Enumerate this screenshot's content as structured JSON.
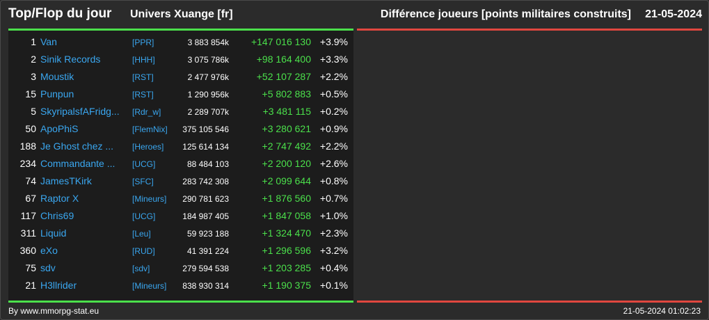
{
  "header": {
    "title": "Top/Flop du jour",
    "universe": "Univers Xuange [fr]",
    "metric": "Différence joueurs [points militaires construits]",
    "date": "21-05-2024"
  },
  "colors": {
    "top_accent": "#4be04b",
    "flop_accent": "#e0473f",
    "player_link": "#3aa7f0",
    "gain_text": "#4be04b"
  },
  "top": {
    "rows": [
      {
        "rank": "1",
        "name": "Van",
        "alliance": "[PPR]",
        "points": "3 883 854k",
        "diff": "+147 016 130",
        "pct": "+3.9%"
      },
      {
        "rank": "2",
        "name": "Sinik Records",
        "alliance": "[HHH]",
        "points": "3 075 786k",
        "diff": "+98 164 400",
        "pct": "+3.3%"
      },
      {
        "rank": "3",
        "name": "Moustik",
        "alliance": "[RST]",
        "points": "2 477 976k",
        "diff": "+52 107 287",
        "pct": "+2.2%"
      },
      {
        "rank": "15",
        "name": "Punpun",
        "alliance": "[RST]",
        "points": "1 290 956k",
        "diff": "+5 802 883",
        "pct": "+0.5%"
      },
      {
        "rank": "5",
        "name": "SkyripalsfAFridg...",
        "alliance": "[Rdr_w]",
        "points": "2 289 707k",
        "diff": "+3 481 115",
        "pct": "+0.2%"
      },
      {
        "rank": "50",
        "name": "ApoPhiS",
        "alliance": "[FlemNix]",
        "points": "375 105 546",
        "diff": "+3 280 621",
        "pct": "+0.9%"
      },
      {
        "rank": "188",
        "name": "Je Ghost chez ...",
        "alliance": "[Heroes]",
        "points": "125 614 134",
        "diff": "+2 747 492",
        "pct": "+2.2%"
      },
      {
        "rank": "234",
        "name": "Commandante ...",
        "alliance": "[UCG]",
        "points": "88 484 103",
        "diff": "+2 200 120",
        "pct": "+2.6%"
      },
      {
        "rank": "74",
        "name": "JamesTKirk",
        "alliance": "[SFC]",
        "points": "283 742 308",
        "diff": "+2 099 644",
        "pct": "+0.8%"
      },
      {
        "rank": "67",
        "name": "Raptor X",
        "alliance": "[Mineurs]",
        "points": "290 781 623",
        "diff": "+1 876 560",
        "pct": "+0.7%"
      },
      {
        "rank": "117",
        "name": "Chris69",
        "alliance": "[UCG]",
        "points": "184 987 405",
        "diff": "+1 847 058",
        "pct": "+1.0%"
      },
      {
        "rank": "311",
        "name": "Liquid",
        "alliance": "[Leu]",
        "points": "59 923 188",
        "diff": "+1 324 470",
        "pct": "+2.3%"
      },
      {
        "rank": "360",
        "name": "eXo",
        "alliance": "[RUD]",
        "points": "41 391 224",
        "diff": "+1 296 596",
        "pct": "+3.2%"
      },
      {
        "rank": "75",
        "name": "sdv",
        "alliance": "[sdv]",
        "points": "279 594 538",
        "diff": "+1 203 285",
        "pct": "+0.4%"
      },
      {
        "rank": "21",
        "name": "H3llrider",
        "alliance": "[Mineurs]",
        "points": "838 930 314",
        "diff": "+1 190 375",
        "pct": "+0.1%"
      }
    ]
  },
  "footer": {
    "source": "By www.mmorpg-stat.eu",
    "timestamp": "21-05-2024 01:02:23"
  }
}
